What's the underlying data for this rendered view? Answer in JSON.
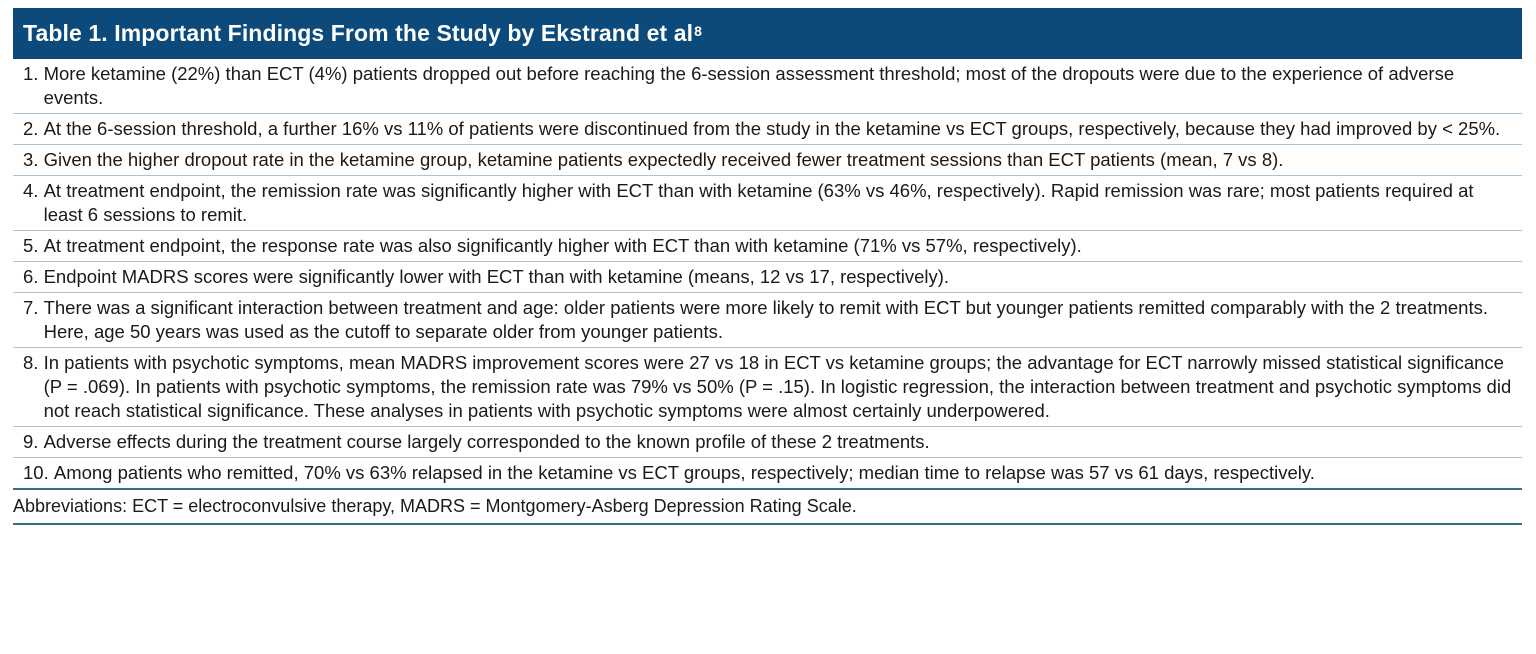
{
  "table": {
    "title": "Table 1. Important Findings From the Study by Ekstrand et al",
    "title_superscript": "8",
    "rows": [
      {
        "num": "1. ",
        "text": "More ketamine (22%) than ECT (4%) patients dropped out before reaching the 6-session assessment threshold; most of the dropouts were due to the experience of adverse events."
      },
      {
        "num": "2. ",
        "text": "At the 6-session threshold, a further 16% vs 11% of patients were discontinued from the study in the ketamine vs ECT groups, respectively, because they had improved by < 25%."
      },
      {
        "num": "3. ",
        "text": "Given the higher dropout rate in the ketamine group, ketamine patients expectedly received fewer treatment sessions than ECT patients (mean, 7 vs 8)."
      },
      {
        "num": "4. ",
        "text": "At treatment endpoint, the remission rate was significantly higher with ECT than with ketamine (63% vs 46%, respectively). Rapid remission was rare; most patients required at least 6 sessions to remit."
      },
      {
        "num": "5. ",
        "text": "At treatment endpoint, the response rate was also significantly higher with ECT than with ketamine (71% vs 57%, respectively)."
      },
      {
        "num": "6. ",
        "text": "Endpoint MADRS scores were significantly lower with ECT than with ketamine (means, 12 vs 17, respectively)."
      },
      {
        "num": "7. ",
        "text": "There was a significant interaction between treatment and age: older patients were more likely to remit with ECT but younger patients remitted comparably with the 2 treatments. Here, age 50 years was used as the cutoff to separate older from younger patients."
      },
      {
        "num": "8. ",
        "text": "In patients with psychotic symptoms, mean MADRS improvement scores were 27 vs 18 in ECT vs ketamine groups; the advantage for ECT narrowly missed statistical significance (P = .069). In patients with psychotic symptoms, the remission rate was 79% vs 50% (P = .15). In logistic regression, the interaction between treatment and psychotic symptoms did not reach statistical significance. These analyses in patients with psychotic symptoms were almost certainly underpowered."
      },
      {
        "num": "9. ",
        "text": "Adverse effects during the treatment course largely corresponded to the known profile of these 2 treatments."
      },
      {
        "num": "10. ",
        "text": "Among patients who remitted, 70% vs 63% relapsed in the ketamine vs ECT groups, respectively; median time to relapse was 57 vs 61 days, respectively."
      }
    ],
    "footnote": "Abbreviations: ECT = electroconvulsive therapy, MADRS = Montgomery-Asberg Depression Rating Scale."
  },
  "colors": {
    "header_bg": "#0b4a7a",
    "header_text": "#ffffff",
    "row_divider": "#a9c4d9",
    "rule": "#3a6b91"
  }
}
